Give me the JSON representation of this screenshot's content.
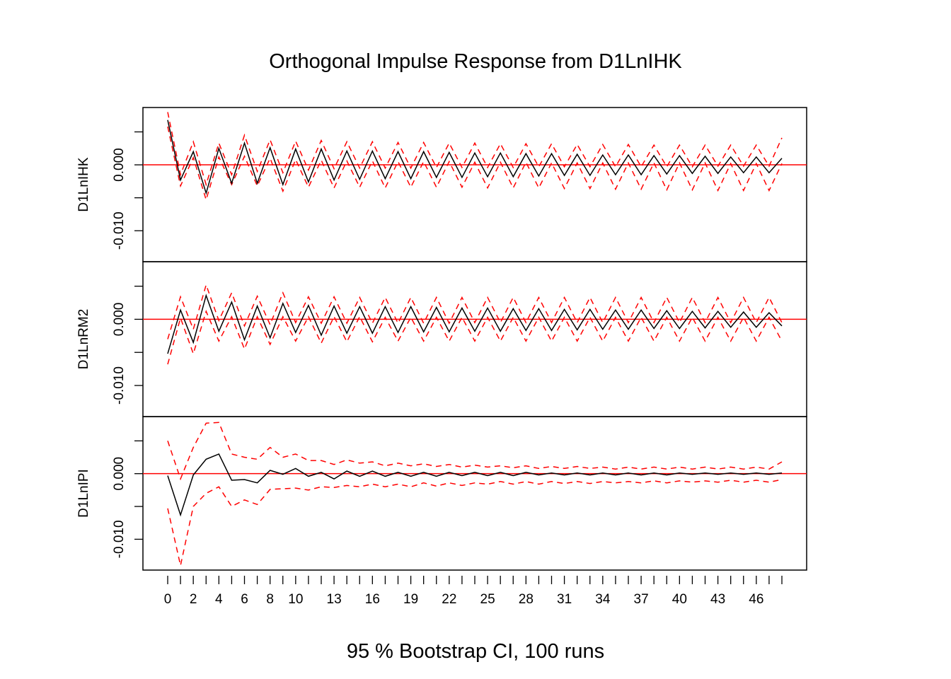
{
  "chart_data": {
    "type": "line",
    "title": "Orthogonal Impulse Response from D1LnIHK",
    "subtitle": "95 % Bootstrap CI,  100 runs",
    "x_range": [
      0,
      48
    ],
    "x_ticks": [
      0,
      2,
      4,
      6,
      8,
      10,
      13,
      16,
      19,
      22,
      25,
      28,
      31,
      34,
      37,
      40,
      43,
      46
    ],
    "x_tick_labels": [
      "0",
      "2",
      "4",
      "6",
      "8",
      "10",
      "13",
      "16",
      "19",
      "22",
      "25",
      "28",
      "31",
      "34",
      "37",
      "40",
      "43",
      "46"
    ],
    "colors": {
      "response": "#000000",
      "ci": "#ff0000",
      "zero_line": "#ff0000"
    },
    "panels": [
      {
        "ylabel": "D1LnIHK",
        "ylim": [
          -0.0147,
          0.0087
        ],
        "y_ticks": [
          -0.01,
          0.0
        ],
        "y_tick_labels": [
          "-0.010",
          "0.000"
        ],
        "response": [
          0.0068,
          -0.0023,
          0.002,
          -0.0043,
          0.0025,
          -0.0028,
          0.0033,
          -0.0028,
          0.0026,
          -0.003,
          0.0024,
          -0.0026,
          0.0024,
          -0.0023,
          0.0021,
          -0.0022,
          0.0021,
          -0.0021,
          0.002,
          -0.0021,
          0.002,
          -0.0019,
          0.0019,
          -0.0019,
          0.0018,
          -0.0018,
          0.0018,
          -0.0018,
          0.0017,
          -0.0017,
          0.0017,
          -0.0016,
          0.0016,
          -0.0016,
          0.0015,
          -0.0015,
          0.0015,
          -0.0015,
          0.0014,
          -0.0014,
          0.0014,
          -0.0013,
          0.0013,
          -0.0013,
          0.0012,
          -0.0012,
          0.0012,
          -0.0012,
          0.001
        ],
        "lower": [
          0.0058,
          -0.0032,
          0.0011,
          -0.0053,
          0.0012,
          -0.003,
          0.0013,
          -0.0032,
          0.001,
          -0.004,
          0.0008,
          -0.0034,
          0.0007,
          -0.0035,
          0.0006,
          -0.0034,
          0.0006,
          -0.0035,
          0.0005,
          -0.0034,
          0.0005,
          -0.0034,
          0.0005,
          -0.0034,
          0.0004,
          -0.0035,
          0.0004,
          -0.0035,
          0.0004,
          -0.0035,
          0.0003,
          -0.0036,
          0.0003,
          -0.0036,
          0.0003,
          -0.0037,
          0.0003,
          -0.0037,
          0.0003,
          -0.0038,
          0.0003,
          -0.0038,
          0.0003,
          -0.0039,
          0.0002,
          -0.0039,
          0.0002,
          -0.0039,
          0.0002
        ],
        "upper": [
          0.008,
          -0.0015,
          0.0035,
          -0.003,
          0.0033,
          -0.0015,
          0.0045,
          -0.001,
          0.0038,
          -0.0012,
          0.0036,
          -0.0008,
          0.0037,
          -0.0006,
          0.0035,
          -0.0005,
          0.0035,
          -0.0005,
          0.0034,
          -0.0005,
          0.0034,
          -0.0004,
          0.0033,
          -0.0004,
          0.0033,
          -0.0004,
          0.0032,
          -0.0004,
          0.0032,
          -0.0003,
          0.0032,
          -0.0003,
          0.0031,
          -0.0003,
          0.0031,
          -0.0003,
          0.0031,
          -0.0003,
          0.003,
          -0.0003,
          0.003,
          -0.0003,
          0.003,
          -0.0002,
          0.003,
          -0.0002,
          0.003,
          -0.0002,
          0.0041
        ]
      },
      {
        "ylabel": "D1LnRM2",
        "ylim": [
          -0.0147,
          0.0087
        ],
        "y_ticks": [
          -0.01,
          0.0
        ],
        "y_tick_labels": [
          "-0.010",
          "0.000"
        ],
        "response": [
          -0.0052,
          0.0014,
          -0.0035,
          0.0036,
          -0.0018,
          0.0026,
          -0.0031,
          0.002,
          -0.0028,
          0.0024,
          -0.002,
          0.0021,
          -0.0024,
          0.002,
          -0.0021,
          0.0019,
          -0.0021,
          0.0019,
          -0.002,
          0.0019,
          -0.0019,
          0.0018,
          -0.0019,
          0.0017,
          -0.0018,
          0.0017,
          -0.0018,
          0.0016,
          -0.0017,
          0.0016,
          -0.0017,
          0.0015,
          -0.0016,
          0.0015,
          -0.0015,
          0.0014,
          -0.0015,
          0.0014,
          -0.0014,
          0.0013,
          -0.0014,
          0.0012,
          -0.0013,
          0.0012,
          -0.0012,
          0.0011,
          -0.0012,
          0.001,
          -0.001
        ],
        "lower": [
          -0.0068,
          0.0002,
          -0.0052,
          0.0012,
          -0.0033,
          0.0004,
          -0.0045,
          0.0004,
          -0.0038,
          0.0004,
          -0.0033,
          0.0004,
          -0.0036,
          0.0004,
          -0.0034,
          0.0004,
          -0.0034,
          0.0003,
          -0.0033,
          0.0003,
          -0.0033,
          0.0003,
          -0.0033,
          0.0003,
          -0.0033,
          0.0003,
          -0.0033,
          0.0003,
          -0.0033,
          0.0003,
          -0.0033,
          0.0003,
          -0.0033,
          0.0003,
          -0.0033,
          0.0003,
          -0.0033,
          0.0003,
          -0.0033,
          0.0003,
          -0.0033,
          0.0003,
          -0.0033,
          0.0003,
          -0.0033,
          0.0003,
          -0.0033,
          0.0003,
          -0.0033
        ],
        "upper": [
          -0.003,
          0.0034,
          -0.0015,
          0.0052,
          -0.0002,
          0.004,
          -0.001,
          0.0035,
          -0.0008,
          0.004,
          -0.0005,
          0.0034,
          -0.0006,
          0.0034,
          -0.0006,
          0.0033,
          -0.0006,
          0.0033,
          -0.0006,
          0.0033,
          -0.0006,
          0.0033,
          -0.0006,
          0.0033,
          -0.0005,
          0.0033,
          -0.0005,
          0.0033,
          -0.0005,
          0.0033,
          -0.0005,
          0.0033,
          -0.0005,
          0.0033,
          -0.0005,
          0.0033,
          -0.0005,
          0.0033,
          -0.0005,
          0.0033,
          -0.0005,
          0.0033,
          -0.0005,
          0.0033,
          -0.0005,
          0.0033,
          -0.0005,
          0.0033,
          -0.0005
        ]
      },
      {
        "ylabel": "D1LnIPI",
        "ylim": [
          -0.0147,
          0.0087
        ],
        "y_ticks": [
          -0.01,
          0.0
        ],
        "y_tick_labels": [
          "-0.010",
          "0.000"
        ],
        "response": [
          -0.0003,
          -0.0063,
          -0.0002,
          0.0022,
          0.003,
          -0.001,
          -0.0009,
          -0.0014,
          0.0005,
          -0.0001,
          0.0008,
          -0.0004,
          0.0002,
          -0.0008,
          0.0004,
          -0.0004,
          0.0004,
          -0.0004,
          0.0002,
          -0.0004,
          0.0002,
          -0.0004,
          0.0002,
          -0.0003,
          0.0002,
          -0.0003,
          0.0002,
          -0.0003,
          0.0002,
          -0.0002,
          0.0001,
          -0.0002,
          0.0001,
          -0.0002,
          0.0001,
          -0.0002,
          0.0001,
          -0.0002,
          0.0001,
          -0.0002,
          0.0001,
          -0.0001,
          0.0001,
          -0.0001,
          0.0001,
          -0.0001,
          0.0001,
          -0.0001,
          0.0001
        ],
        "lower": [
          -0.0053,
          -0.014,
          -0.005,
          -0.003,
          -0.002,
          -0.005,
          -0.004,
          -0.0047,
          -0.0024,
          -0.0023,
          -0.0022,
          -0.0025,
          -0.002,
          -0.0021,
          -0.0018,
          -0.002,
          -0.0016,
          -0.002,
          -0.0016,
          -0.002,
          -0.0014,
          -0.0019,
          -0.0014,
          -0.0018,
          -0.0014,
          -0.0016,
          -0.0012,
          -0.0016,
          -0.0012,
          -0.0016,
          -0.0012,
          -0.0015,
          -0.0012,
          -0.0015,
          -0.0012,
          -0.0014,
          -0.0012,
          -0.0014,
          -0.0011,
          -0.0014,
          -0.0011,
          -0.0013,
          -0.0011,
          -0.0013,
          -0.001,
          -0.0013,
          -0.001,
          -0.0013,
          -0.0009
        ],
        "upper": [
          0.005,
          -0.0008,
          0.004,
          0.0077,
          0.0078,
          0.003,
          0.0025,
          0.0022,
          0.004,
          0.0025,
          0.003,
          0.002,
          0.002,
          0.0014,
          0.0021,
          0.0016,
          0.0018,
          0.0012,
          0.0016,
          0.0012,
          0.0015,
          0.0011,
          0.0014,
          0.001,
          0.0013,
          0.001,
          0.0012,
          0.0009,
          0.0012,
          0.0008,
          0.0011,
          0.0008,
          0.0011,
          0.0008,
          0.001,
          0.0007,
          0.001,
          0.0007,
          0.001,
          0.0007,
          0.001,
          0.0007,
          0.001,
          0.0007,
          0.001,
          0.0007,
          0.001,
          0.0007,
          0.0018
        ]
      }
    ]
  }
}
